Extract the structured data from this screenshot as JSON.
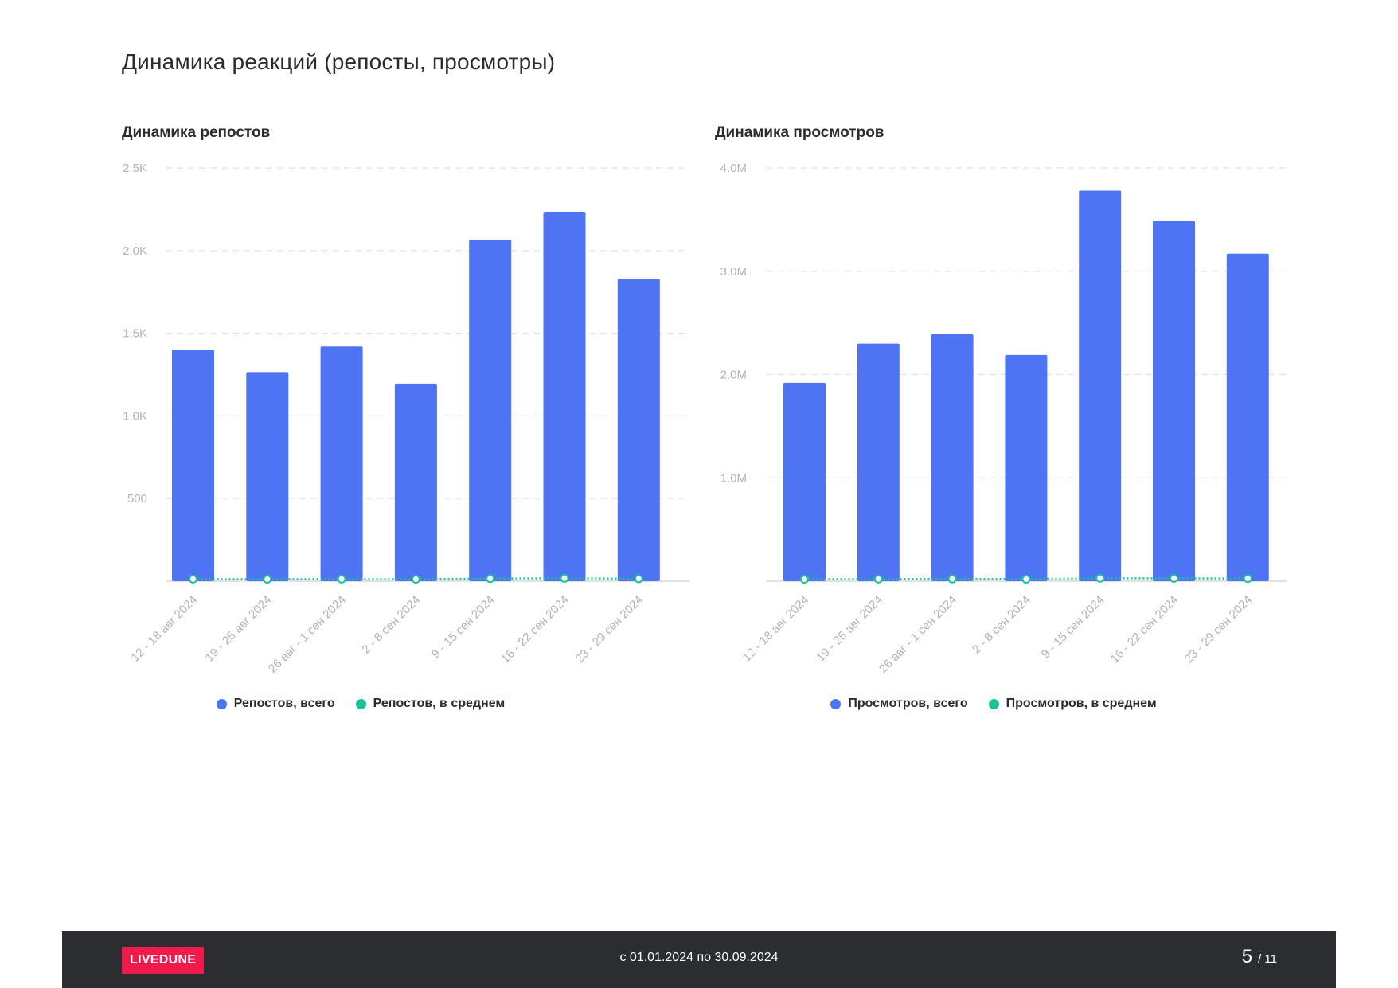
{
  "page": {
    "title": "Динамика реакций (репосты, просмотры)"
  },
  "colors": {
    "bar": "#4f74f3",
    "avg": "#19c39a",
    "grid": "#e2e2e2",
    "tick": "#b3b3b3",
    "footer_bg": "#2c2d30",
    "logo_bg": "#f01a4b"
  },
  "chart_data": [
    {
      "type": "bar",
      "title": "Динамика репостов",
      "categories": [
        "12 - 18 авг 2024",
        "19 - 25 авг 2024",
        "26 авг - 1 сен 2024",
        "2 - 8 сен 2024",
        "9 - 15 сен 2024",
        "16 - 22 сен 2024",
        "23 - 29 сен 2024"
      ],
      "series": [
        {
          "name": "Репостов, всего",
          "kind": "bar",
          "values": [
            1400,
            1265,
            1420,
            1195,
            2065,
            2235,
            1830
          ]
        },
        {
          "name": "Репостов, в среднем",
          "kind": "line",
          "style": "dotted",
          "values": [
            8,
            7,
            8,
            7,
            11,
            13,
            10
          ]
        }
      ],
      "ylim": [
        0,
        2500
      ],
      "yticks": [
        {
          "value": 500,
          "label": "500"
        },
        {
          "value": 1000,
          "label": "1.0K"
        },
        {
          "value": 1500,
          "label": "1.5K"
        },
        {
          "value": 2000,
          "label": "2.0K"
        },
        {
          "value": 2500,
          "label": "2.5K"
        }
      ],
      "grid": true,
      "legend": "bottom"
    },
    {
      "type": "bar",
      "title": "Динамика просмотров",
      "categories": [
        "12 - 18 авг 2024",
        "19 - 25 авг 2024",
        "26 авг - 1 сен 2024",
        "2 - 8 сен 2024",
        "9 - 15 сен 2024",
        "16 - 22 сен 2024",
        "23 - 29 сен 2024"
      ],
      "series": [
        {
          "name": "Просмотров, всего",
          "kind": "bar",
          "values": [
            1920000,
            2300000,
            2390000,
            2190000,
            3780000,
            3490000,
            3170000
          ]
        },
        {
          "name": "Просмотров, в среднем",
          "kind": "line",
          "style": "dotted",
          "values": [
            11000,
            13000,
            14000,
            12000,
            21000,
            20000,
            18000
          ]
        }
      ],
      "ylim": [
        0,
        4000000
      ],
      "yticks": [
        {
          "value": 1000000,
          "label": "1.0M"
        },
        {
          "value": 2000000,
          "label": "2.0M"
        },
        {
          "value": 3000000,
          "label": "3.0M"
        },
        {
          "value": 4000000,
          "label": "4.0M"
        }
      ],
      "grid": true,
      "legend": "bottom"
    }
  ],
  "footer": {
    "logo": "LIVEDUNE",
    "period": "с 01.01.2024 по 30.09.2024",
    "page_current": "5",
    "page_total": "/ 11"
  }
}
